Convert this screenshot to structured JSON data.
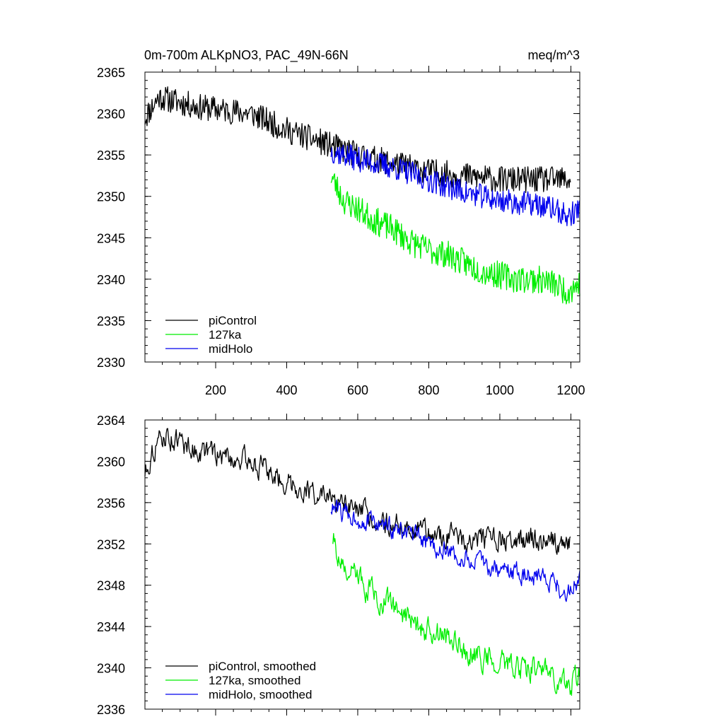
{
  "page": {
    "background": "#ffffff"
  },
  "chart_data": [
    {
      "type": "line",
      "id": "top",
      "title": "0m-700m ALKpNO3, PAC_49N-66N",
      "units_label": "meq/m^3",
      "xlabel": "",
      "ylabel": "",
      "xlim": [
        1,
        1225
      ],
      "ylim": [
        2330,
        2365
      ],
      "x_ticks": [
        200,
        400,
        600,
        800,
        1000,
        1200
      ],
      "y_ticks": [
        2330,
        2335,
        2340,
        2345,
        2350,
        2355,
        2360,
        2365
      ],
      "grid": false,
      "legend_position": "bottom-left",
      "series": [
        {
          "name": "piControl",
          "color": "#000000",
          "x_start": 1,
          "x_end": 1200,
          "noise": 1.6,
          "seed": 11,
          "trend": [
            [
              1,
              2359.5
            ],
            [
              40,
              2362
            ],
            [
              150,
              2360.8
            ],
            [
              300,
              2360
            ],
            [
              400,
              2358
            ],
            [
              500,
              2356.5
            ],
            [
              600,
              2355
            ],
            [
              700,
              2354
            ],
            [
              800,
              2353
            ],
            [
              900,
              2352.5
            ],
            [
              1000,
              2352
            ],
            [
              1100,
              2352
            ],
            [
              1200,
              2352
            ]
          ]
        },
        {
          "name": "127ka",
          "color": "#00ee00",
          "x_start": 525,
          "x_end": 1225,
          "noise": 1.7,
          "seed": 23,
          "trend": [
            [
              525,
              2352.5
            ],
            [
              560,
              2349.5
            ],
            [
              600,
              2348.5
            ],
            [
              650,
              2347
            ],
            [
              700,
              2346
            ],
            [
              750,
              2344.5
            ],
            [
              800,
              2343.5
            ],
            [
              850,
              2343
            ],
            [
              900,
              2342
            ],
            [
              950,
              2341
            ],
            [
              1000,
              2340.5
            ],
            [
              1050,
              2340
            ],
            [
              1100,
              2340
            ],
            [
              1150,
              2339.5
            ],
            [
              1190,
              2338.5
            ],
            [
              1225,
              2339.5
            ]
          ]
        },
        {
          "name": "midHolo",
          "color": "#0000ee",
          "x_start": 525,
          "x_end": 1225,
          "noise": 1.5,
          "seed": 37,
          "trend": [
            [
              525,
              2355.5
            ],
            [
              600,
              2354.5
            ],
            [
              700,
              2353.5
            ],
            [
              800,
              2352
            ],
            [
              900,
              2350.5
            ],
            [
              1000,
              2349.5
            ],
            [
              1100,
              2349
            ],
            [
              1150,
              2348.5
            ],
            [
              1190,
              2347.5
            ],
            [
              1225,
              2348.5
            ]
          ]
        }
      ]
    },
    {
      "type": "line",
      "id": "bottom",
      "title": "",
      "xlabel": "",
      "ylabel": "",
      "xlim": [
        1,
        1225
      ],
      "ylim": [
        2336,
        2364
      ],
      "x_ticks": [
        200,
        400,
        600,
        800,
        1000,
        1200
      ],
      "y_ticks": [
        2336,
        2340,
        2344,
        2348,
        2352,
        2356,
        2360,
        2364
      ],
      "grid": false,
      "legend_position": "bottom-left",
      "series": [
        {
          "name": "piControl, smoothed",
          "color": "#000000",
          "x_start": 1,
          "x_end": 1200,
          "noise": 1.0,
          "seed": 11,
          "trend": [
            [
              1,
              2359
            ],
            [
              30,
              2361.5
            ],
            [
              60,
              2362.5
            ],
            [
              150,
              2361
            ],
            [
              300,
              2360
            ],
            [
              400,
              2358
            ],
            [
              500,
              2356.5
            ],
            [
              600,
              2355
            ],
            [
              700,
              2354
            ],
            [
              800,
              2353
            ],
            [
              900,
              2352.5
            ],
            [
              1000,
              2352.2
            ],
            [
              1100,
              2352.5
            ],
            [
              1200,
              2352
            ]
          ]
        },
        {
          "name": "127ka, smoothed",
          "color": "#00ee00",
          "x_start": 530,
          "x_end": 1225,
          "noise": 1.1,
          "seed": 23,
          "trend": [
            [
              530,
              2352.5
            ],
            [
              560,
              2349.5
            ],
            [
              600,
              2348.5
            ],
            [
              650,
              2347
            ],
            [
              700,
              2346
            ],
            [
              750,
              2344.5
            ],
            [
              800,
              2343.5
            ],
            [
              850,
              2343
            ],
            [
              900,
              2342
            ],
            [
              950,
              2341
            ],
            [
              1000,
              2340.5
            ],
            [
              1050,
              2340
            ],
            [
              1100,
              2340
            ],
            [
              1150,
              2339.5
            ],
            [
              1190,
              2338
            ],
            [
              1225,
              2339.5
            ]
          ]
        },
        {
          "name": "midHolo, smoothed",
          "color": "#0000ee",
          "x_start": 525,
          "x_end": 1225,
          "noise": 0.9,
          "seed": 37,
          "trend": [
            [
              525,
              2355.5
            ],
            [
              600,
              2354.5
            ],
            [
              700,
              2353.5
            ],
            [
              800,
              2352
            ],
            [
              900,
              2350.5
            ],
            [
              1000,
              2349.5
            ],
            [
              1100,
              2349
            ],
            [
              1150,
              2348.5
            ],
            [
              1190,
              2347
            ],
            [
              1225,
              2349
            ]
          ]
        }
      ]
    }
  ]
}
